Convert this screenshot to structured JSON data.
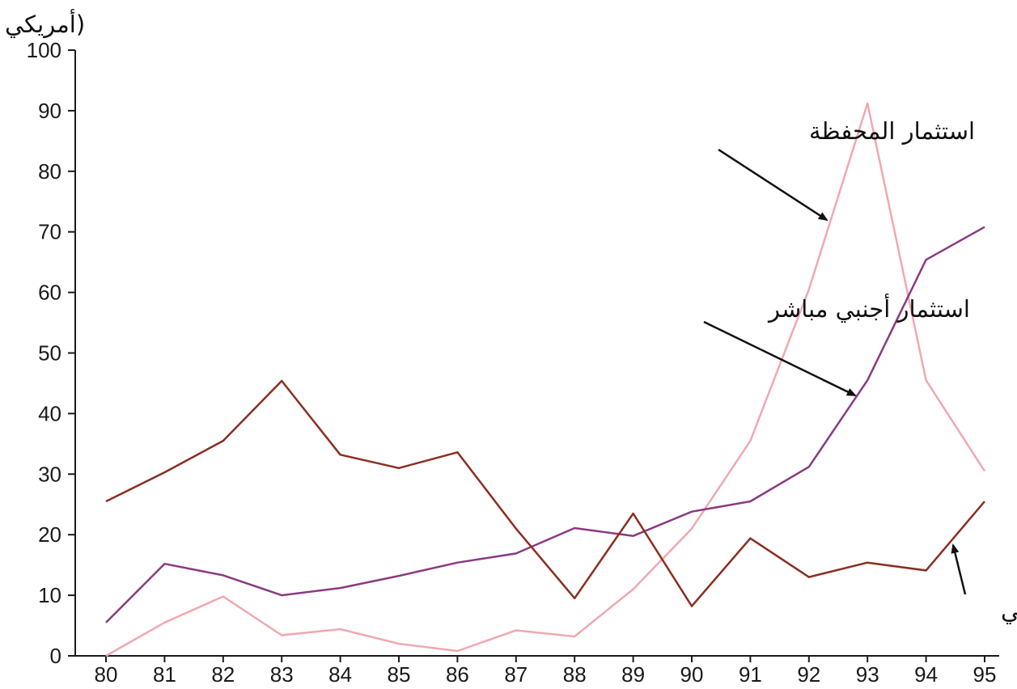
{
  "chart_data": {
    "type": "line",
    "unit_label": "أمريكي)",
    "x": [
      "80",
      "81",
      "82",
      "83",
      "84",
      "85",
      "86",
      "87",
      "88",
      "89",
      "90",
      "91",
      "92",
      "93",
      "94",
      "95"
    ],
    "ylim": [
      0,
      100
    ],
    "yticks": [
      0,
      10,
      20,
      30,
      40,
      50,
      60,
      70,
      80,
      90,
      100
    ],
    "grid": false,
    "series": [
      {
        "name": "استثمار المحفظة",
        "color": "#f0a8b0",
        "values": [
          0,
          5.5,
          9.8,
          3.4,
          4.4,
          2,
          0.8,
          4.2,
          3.2,
          11,
          21,
          35.5,
          60.5,
          91.2,
          45.5,
          30.5
        ]
      },
      {
        "name": "استثمار أجنبي مباشر",
        "color": "#8a3a82",
        "values": [
          5.5,
          15.2,
          13.3,
          10,
          11.2,
          13.2,
          15.4,
          16.9,
          21.1,
          19.8,
          23.8,
          25.5,
          31.2,
          45.5,
          65.4,
          70.8
        ]
      },
      {
        "name": "إقراض حكومي",
        "color": "#8b2e20",
        "values": [
          25.5,
          30.3,
          35.5,
          45.4,
          33.2,
          31,
          33.6,
          21,
          9.5,
          23.5,
          8.2,
          19.4,
          13,
          15.4,
          14.1,
          25.5
        ]
      }
    ],
    "annotations": [
      {
        "text": "استثمار المحفظة",
        "series": 0
      },
      {
        "text": "استثمار أجنبي مباشر",
        "series": 1
      },
      {
        "text": "إقراض حكومي",
        "series": 2
      }
    ]
  }
}
